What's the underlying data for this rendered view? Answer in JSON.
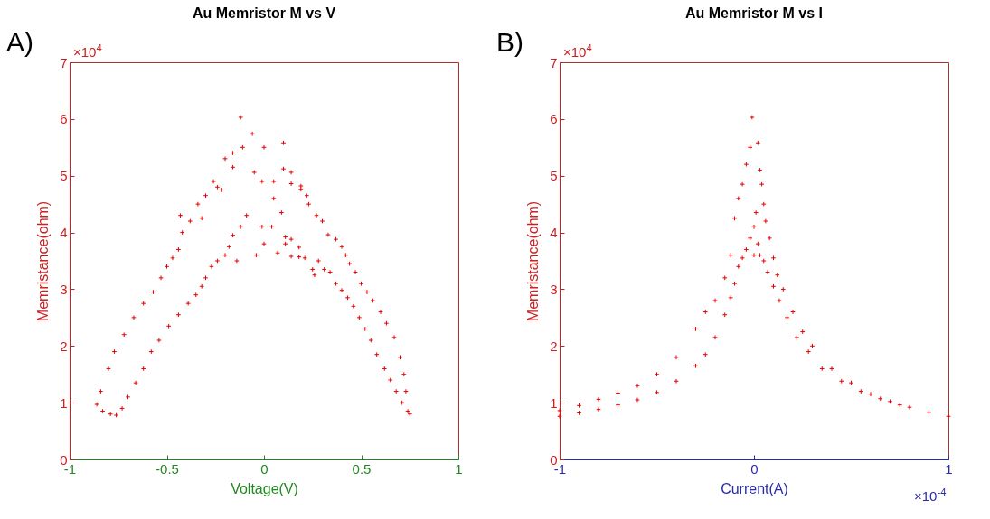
{
  "chart_data": [
    {
      "type": "scatter",
      "title": "Au Memristor M vs V",
      "xlabel": "Voltage(V)",
      "ylabel": "Memristance(ohm)",
      "annotations": [
        "A)",
        "×10$^{4}$"
      ],
      "marker": "cross",
      "grid": false,
      "xlim": [
        -1,
        1
      ],
      "xticks": [
        -1,
        -0.5,
        0,
        0.5,
        1
      ],
      "ylim": [
        0,
        7
      ],
      "yticks": [
        0,
        1,
        2,
        3,
        4,
        5,
        6,
        7
      ],
      "series": [
        {
          "color": "#e60000",
          "x": [
            -0.86,
            -0.84,
            -0.8,
            -0.77,
            -0.72,
            -0.67,
            -0.62,
            -0.57,
            -0.53,
            -0.5,
            -0.47,
            -0.44,
            -0.42,
            -0.43,
            -0.38,
            -0.34,
            -0.32,
            -0.3,
            -0.26,
            -0.24,
            -0.22,
            -0.2,
            -0.16,
            -0.16,
            -0.12,
            -0.11,
            -0.06,
            -0.05,
            0.0,
            -0.01,
            0.05,
            0.05,
            0.1,
            0.1,
            0.14,
            0.14,
            0.19,
            0.19,
            0.22,
            0.23,
            0.27,
            0.3,
            0.33,
            0.37,
            0.4,
            0.42,
            0.44,
            0.47,
            0.5,
            0.53,
            0.56,
            0.6,
            0.63,
            0.67,
            0.7,
            0.72,
            0.73,
            0.75,
            -0.83,
            -0.79,
            -0.76,
            -0.73,
            -0.7,
            -0.66,
            -0.62,
            -0.58,
            -0.54,
            -0.49,
            -0.44,
            -0.39,
            -0.35,
            -0.32,
            -0.3,
            -0.27,
            -0.24,
            -0.2,
            -0.18,
            -0.16,
            -0.14,
            -0.12,
            -0.09,
            -0.04,
            -0.01,
            0.0,
            0.04,
            0.07,
            0.09,
            0.11,
            0.11,
            0.14,
            0.14,
            0.18,
            0.18,
            0.21,
            0.25,
            0.26,
            0.28,
            0.31,
            0.34,
            0.37,
            0.4,
            0.43,
            0.46,
            0.49,
            0.52,
            0.55,
            0.58,
            0.62,
            0.65,
            0.68,
            0.71,
            0.74
          ],
          "values": [
            0.97,
            1.2,
            1.6,
            1.9,
            2.2,
            2.5,
            2.75,
            2.95,
            3.2,
            3.4,
            3.55,
            3.7,
            4.0,
            4.3,
            4.2,
            4.5,
            4.25,
            4.65,
            4.9,
            4.8,
            4.75,
            5.3,
            5.4,
            5.15,
            6.03,
            5.5,
            5.74,
            5.06,
            5.5,
            4.9,
            4.9,
            4.6,
            5.58,
            5.12,
            5.06,
            4.86,
            4.82,
            4.76,
            4.65,
            4.5,
            4.3,
            4.2,
            3.96,
            3.88,
            3.75,
            3.6,
            3.45,
            3.3,
            3.1,
            2.95,
            2.8,
            2.6,
            2.4,
            2.15,
            1.8,
            1.5,
            1.2,
            0.8,
            0.85,
            0.8,
            0.78,
            0.9,
            1.1,
            1.35,
            1.6,
            1.9,
            2.1,
            2.35,
            2.55,
            2.75,
            2.9,
            3.05,
            3.2,
            3.4,
            3.5,
            3.6,
            3.75,
            3.95,
            3.5,
            4.1,
            4.3,
            3.6,
            4.1,
            3.8,
            4.1,
            3.64,
            4.35,
            3.8,
            3.92,
            3.58,
            3.88,
            3.57,
            3.74,
            3.55,
            3.35,
            3.25,
            3.5,
            3.35,
            3.3,
            3.1,
            2.98,
            2.85,
            2.7,
            2.5,
            2.3,
            2.1,
            1.85,
            1.6,
            1.4,
            1.2,
            1.0,
            0.85
          ]
        }
      ]
    },
    {
      "type": "scatter",
      "title": "Au Memristor M vs I",
      "xlabel": "Current(A)",
      "ylabel": "Memristance(ohm)",
      "annotations": [
        "B)",
        "×10$^{4}$",
        "×10$^{-4}$"
      ],
      "marker": "cross",
      "grid": false,
      "xlim": [
        -1,
        1
      ],
      "xticks": [
        -1,
        0,
        1
      ],
      "ylim": [
        0,
        7
      ],
      "yticks": [
        0,
        1,
        2,
        3,
        4,
        5,
        6,
        7
      ],
      "series": [
        {
          "color": "#e60000",
          "x": [
            -1,
            -0.9,
            -0.8,
            -0.7,
            -0.6,
            -0.5,
            -0.4,
            -0.3,
            -0.25,
            -0.2,
            -0.15,
            -0.12,
            -0.1,
            -0.08,
            -0.06,
            -0.04,
            -0.02,
            -0.01,
            -1,
            -0.9,
            -0.8,
            -0.7,
            -0.6,
            -0.5,
            -0.4,
            -0.3,
            -0.25,
            -0.2,
            -0.15,
            -0.12,
            -0.1,
            -0.08,
            -0.06,
            -0.04,
            -0.02,
            0,
            0,
            0.01,
            0.02,
            0.02,
            0.03,
            0.04,
            0.05,
            0.06,
            0.08,
            0.1,
            0.12,
            0.15,
            0.2,
            0.25,
            0.3,
            0.4,
            0.5,
            0.6,
            0.7,
            0.8,
            0.9,
            1,
            0.03,
            0.05,
            0.07,
            0.1,
            0.13,
            0.17,
            0.22,
            0.28,
            0.35,
            0.45,
            0.55,
            0.65,
            0.75
          ],
          "values": [
            0.86,
            0.95,
            1.06,
            1.17,
            1.3,
            1.5,
            1.8,
            2.3,
            2.6,
            2.8,
            3.2,
            3.6,
            4.25,
            4.6,
            4.85,
            5.2,
            5.5,
            6.03,
            0.76,
            0.82,
            0.88,
            0.96,
            1.05,
            1.18,
            1.38,
            1.65,
            1.85,
            2.15,
            2.55,
            2.85,
            3.1,
            3.4,
            3.55,
            3.7,
            3.9,
            3.6,
            4.1,
            4.35,
            3.8,
            5.58,
            5.1,
            4.85,
            4.5,
            4.2,
            3.9,
            3.55,
            3.25,
            3.0,
            2.6,
            2.25,
            2.0,
            1.6,
            1.35,
            1.15,
            1.02,
            0.92,
            0.83,
            0.76,
            3.6,
            3.5,
            3.3,
            3.05,
            2.8,
            2.5,
            2.15,
            1.9,
            1.6,
            1.38,
            1.2,
            1.07,
            0.96
          ]
        }
      ]
    }
  ]
}
